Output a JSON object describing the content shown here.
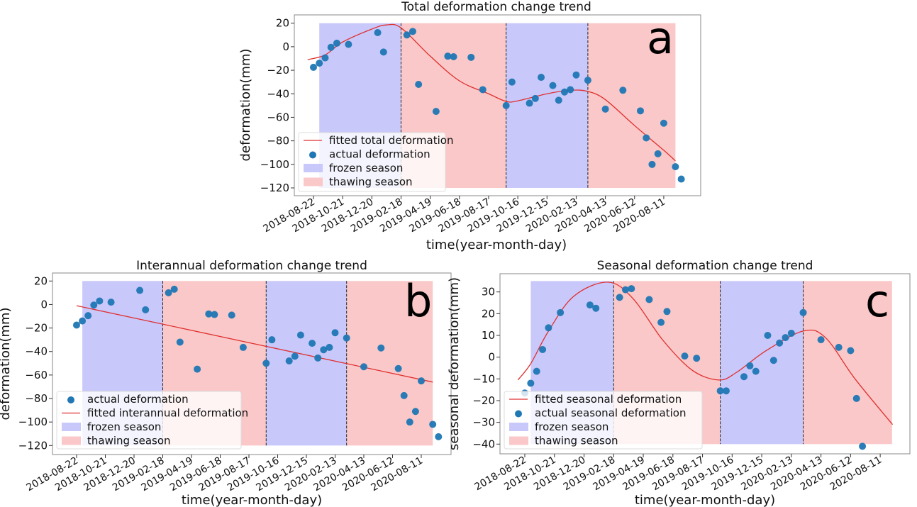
{
  "chart_data": [
    {
      "type": "scatter",
      "title": "Total deformation change trend",
      "xlabel": "time(year-month-day)",
      "ylabel": "deformation(mm)",
      "panel_label": "a",
      "x_ticks": [
        "2018-08-22",
        "2018-10-21",
        "2018-12-20",
        "2019-02-18",
        "2019-04-19",
        "2019-06-18",
        "2019-08-17",
        "2019-10-16",
        "2019-12-15",
        "2020-02-13",
        "2020-04-13",
        "2020-06-12",
        "2020-08-11"
      ],
      "y_ticks": [
        20,
        0,
        -20,
        -40,
        -60,
        -80,
        -100,
        -120
      ],
      "ylim": [
        -120,
        20
      ],
      "grid": false,
      "legend_placement": "lower-left",
      "colors": {
        "frozen": "#c8c8fa",
        "thawing": "#fac8c8",
        "points": "#1f77b4",
        "line": "#e03030"
      },
      "seasons": [
        {
          "name": "frozen season",
          "kind": "frozen",
          "start": "2018-09-03",
          "end": "2019-02-18"
        },
        {
          "name": "thawing season",
          "kind": "thawing",
          "start": "2019-02-18",
          "end": "2019-09-22"
        },
        {
          "name": "frozen season",
          "kind": "frozen",
          "start": "2019-09-22",
          "end": "2020-03-08"
        },
        {
          "name": "thawing season",
          "kind": "thawing",
          "start": "2020-03-08",
          "end": "2020-09-04"
        }
      ],
      "season_fill_range": [
        -120,
        20
      ],
      "legend": [
        "fitted total deformation",
        "actual deformation",
        "frozen season",
        "thawing season"
      ],
      "series": [
        {
          "name": "fitted total deformation",
          "type": "line",
          "x": [
            "2018-08-10",
            "2018-09-15",
            "2018-10-21",
            "2018-12-20",
            "2019-01-19",
            "2019-02-18",
            "2019-04-19",
            "2019-06-18",
            "2019-08-17",
            "2019-09-22",
            "2019-10-16",
            "2019-12-15",
            "2020-02-01",
            "2020-03-08",
            "2020-04-13",
            "2020-06-12",
            "2020-08-11",
            "2020-09-04"
          ],
          "y": [
            -11,
            -7,
            4,
            15,
            18.5,
            16,
            -8,
            -29,
            -40,
            -46.5,
            -46,
            -40,
            -37,
            -38,
            -45,
            -67,
            -88,
            -97
          ]
        },
        {
          "name": "actual deformation",
          "type": "scatter",
          "x": [
            "2018-08-22",
            "2018-09-03",
            "2018-09-15",
            "2018-09-27",
            "2018-10-09",
            "2018-11-02",
            "2019-01-01",
            "2019-01-13",
            "2019-03-02",
            "2019-03-14",
            "2019-03-26",
            "2019-05-01",
            "2019-05-25",
            "2019-06-06",
            "2019-07-12",
            "2019-08-05",
            "2019-09-22",
            "2019-10-04",
            "2019-11-09",
            "2019-11-21",
            "2019-12-03",
            "2019-12-27",
            "2020-01-08",
            "2020-01-20",
            "2020-02-01",
            "2020-02-13",
            "2020-03-08",
            "2020-04-13",
            "2020-05-19",
            "2020-06-24",
            "2020-07-06",
            "2020-07-18",
            "2020-07-30",
            "2020-08-11",
            "2020-09-04",
            "2020-09-16"
          ],
          "y": [
            -17.5,
            -14,
            -9.5,
            -0.5,
            3,
            2,
            12,
            -4.5,
            10,
            13,
            -32,
            -55,
            -8,
            -8.5,
            -9,
            -36.5,
            -50,
            -30,
            -48,
            -44,
            -26,
            -33,
            -45.5,
            -38.5,
            -36.5,
            -24,
            -28.5,
            -53,
            -37,
            -54.5,
            -77.5,
            -100,
            -91,
            -65,
            -102,
            -112.5
          ]
        }
      ]
    },
    {
      "type": "scatter",
      "title": "Interannual deformation change trend",
      "xlabel": "time(year-month-day)",
      "ylabel": "deformation(mm)",
      "panel_label": "b",
      "x_ticks": [
        "2018-08-22",
        "2018-10-21",
        "2018-12-20",
        "2019-02-18",
        "2019-04-19",
        "2019-06-18",
        "2019-08-17",
        "2019-10-16",
        "2019-12-15",
        "2020-02-13",
        "2020-04-13",
        "2020-06-12",
        "2020-08-11"
      ],
      "y_ticks": [
        20,
        0,
        -20,
        -40,
        -60,
        -80,
        -100,
        -120
      ],
      "ylim": [
        -120,
        20
      ],
      "grid": false,
      "legend_placement": "lower-left",
      "colors": {
        "frozen": "#c8c8fa",
        "thawing": "#fac8c8",
        "points": "#1f77b4",
        "line": "#e03030"
      },
      "seasons": [
        {
          "name": "frozen season",
          "kind": "frozen",
          "start": "2018-09-03",
          "end": "2019-02-18"
        },
        {
          "name": "thawing season",
          "kind": "thawing",
          "start": "2019-02-18",
          "end": "2019-09-22"
        },
        {
          "name": "frozen season",
          "kind": "frozen",
          "start": "2019-09-22",
          "end": "2020-03-08"
        },
        {
          "name": "thawing season",
          "kind": "thawing",
          "start": "2020-03-08",
          "end": "2020-09-04"
        }
      ],
      "season_fill_range": [
        -120,
        20
      ],
      "legend": [
        "actual deformation",
        "fitted interannual deformation",
        "frozen season",
        "thawing season"
      ],
      "series": [
        {
          "name": "fitted interannual deformation",
          "type": "line",
          "x": [
            "2018-08-22",
            "2020-09-04"
          ],
          "y": [
            -1,
            -66
          ]
        },
        {
          "name": "actual deformation",
          "type": "scatter",
          "x": [
            "2018-08-22",
            "2018-09-03",
            "2018-09-15",
            "2018-09-27",
            "2018-10-09",
            "2018-11-02",
            "2019-01-01",
            "2019-01-13",
            "2019-03-02",
            "2019-03-14",
            "2019-03-26",
            "2019-05-01",
            "2019-05-25",
            "2019-06-06",
            "2019-07-12",
            "2019-08-05",
            "2019-09-22",
            "2019-10-04",
            "2019-11-09",
            "2019-11-21",
            "2019-12-03",
            "2019-12-27",
            "2020-01-08",
            "2020-01-20",
            "2020-02-01",
            "2020-02-13",
            "2020-03-08",
            "2020-04-13",
            "2020-05-19",
            "2020-06-24",
            "2020-07-06",
            "2020-07-18",
            "2020-07-30",
            "2020-08-11",
            "2020-09-04",
            "2020-09-16"
          ],
          "y": [
            -17.5,
            -14,
            -9.5,
            -0.5,
            3,
            2,
            12,
            -4.5,
            10,
            13,
            -32,
            -55,
            -8,
            -8.5,
            -9,
            -36.5,
            -50,
            -30,
            -48,
            -44,
            -26,
            -33,
            -45.5,
            -38.5,
            -36.5,
            -24,
            -28.5,
            -53,
            -37,
            -54.5,
            -77.5,
            -100,
            -91,
            -65,
            -102,
            -112.5
          ]
        }
      ]
    },
    {
      "type": "scatter",
      "title": "Seasonal deformation change trend",
      "xlabel": "time(year-month-day)",
      "ylabel": "seasonal deformation(mm)",
      "panel_label": "c",
      "x_ticks": [
        "2018-08-22",
        "2018-10-21",
        "2018-12-20",
        "2019-02-18",
        "2019-04-19",
        "2019-06-18",
        "2019-08-17",
        "2019-10-16",
        "2019-12-15",
        "2020-02-13",
        "2020-04-13",
        "2020-06-12",
        "2020-08-11"
      ],
      "y_ticks": [
        30,
        20,
        10,
        0,
        -10,
        -20,
        -30,
        -40
      ],
      "ylim": [
        -45,
        37
      ],
      "grid": false,
      "legend_placement": "lower-left",
      "colors": {
        "frozen": "#c8c8fa",
        "thawing": "#fac8c8",
        "points": "#1f77b4",
        "line": "#e03030"
      },
      "seasons": [
        {
          "name": "frozen season",
          "kind": "frozen",
          "start": "2018-09-03",
          "end": "2019-02-18"
        },
        {
          "name": "thawing season",
          "kind": "thawing",
          "start": "2019-02-18",
          "end": "2019-09-22"
        },
        {
          "name": "frozen season",
          "kind": "frozen",
          "start": "2019-09-22",
          "end": "2020-03-08"
        },
        {
          "name": "thawing season",
          "kind": "thawing",
          "start": "2020-03-08",
          "end": "2020-09-04"
        }
      ],
      "season_fill_range": [
        -40,
        35
      ],
      "legend": [
        "fitted seasonal deformation",
        "actual seasonal deformation",
        "frozen season",
        "thawing season"
      ],
      "series": [
        {
          "name": "fitted seasonal deformation",
          "type": "line",
          "x": [
            "2018-08-08",
            "2018-09-03",
            "2018-10-09",
            "2018-11-29",
            "2019-02-06",
            "2019-03-29",
            "2019-05-28",
            "2019-07-27",
            "2019-09-19",
            "2019-10-25",
            "2019-12-24",
            "2020-03-08",
            "2020-04-22",
            "2020-06-21",
            "2020-09-05"
          ],
          "y": [
            -10.5,
            -3,
            12,
            28,
            34.5,
            27,
            8,
            -6,
            -10.5,
            -7,
            3,
            12,
            9,
            -10,
            -31
          ]
        },
        {
          "name": "actual seasonal deformation",
          "type": "scatter",
          "x": [
            "2018-08-22",
            "2018-09-03",
            "2018-09-15",
            "2018-09-27",
            "2018-10-09",
            "2018-11-02",
            "2019-01-01",
            "2019-01-13",
            "2019-03-02",
            "2019-03-14",
            "2019-03-26",
            "2019-05-01",
            "2019-05-25",
            "2019-06-06",
            "2019-07-12",
            "2019-08-05",
            "2019-09-22",
            "2019-10-04",
            "2019-11-09",
            "2019-11-21",
            "2019-12-03",
            "2019-12-27",
            "2020-01-08",
            "2020-01-20",
            "2020-02-01",
            "2020-02-13",
            "2020-03-08",
            "2020-04-13",
            "2020-05-19",
            "2020-06-12",
            "2020-06-24",
            "2020-07-06"
          ],
          "y": [
            -16.5,
            -12,
            -6.5,
            3.5,
            13.5,
            20.5,
            24,
            22.5,
            27.5,
            31,
            31.5,
            26.5,
            16,
            21,
            0.5,
            -0.5,
            -15.5,
            -15.5,
            -9,
            -4,
            -6.5,
            10,
            -1.5,
            6.5,
            9,
            11,
            20.5,
            8,
            4.5,
            3,
            -19,
            -41
          ]
        }
      ]
    }
  ]
}
